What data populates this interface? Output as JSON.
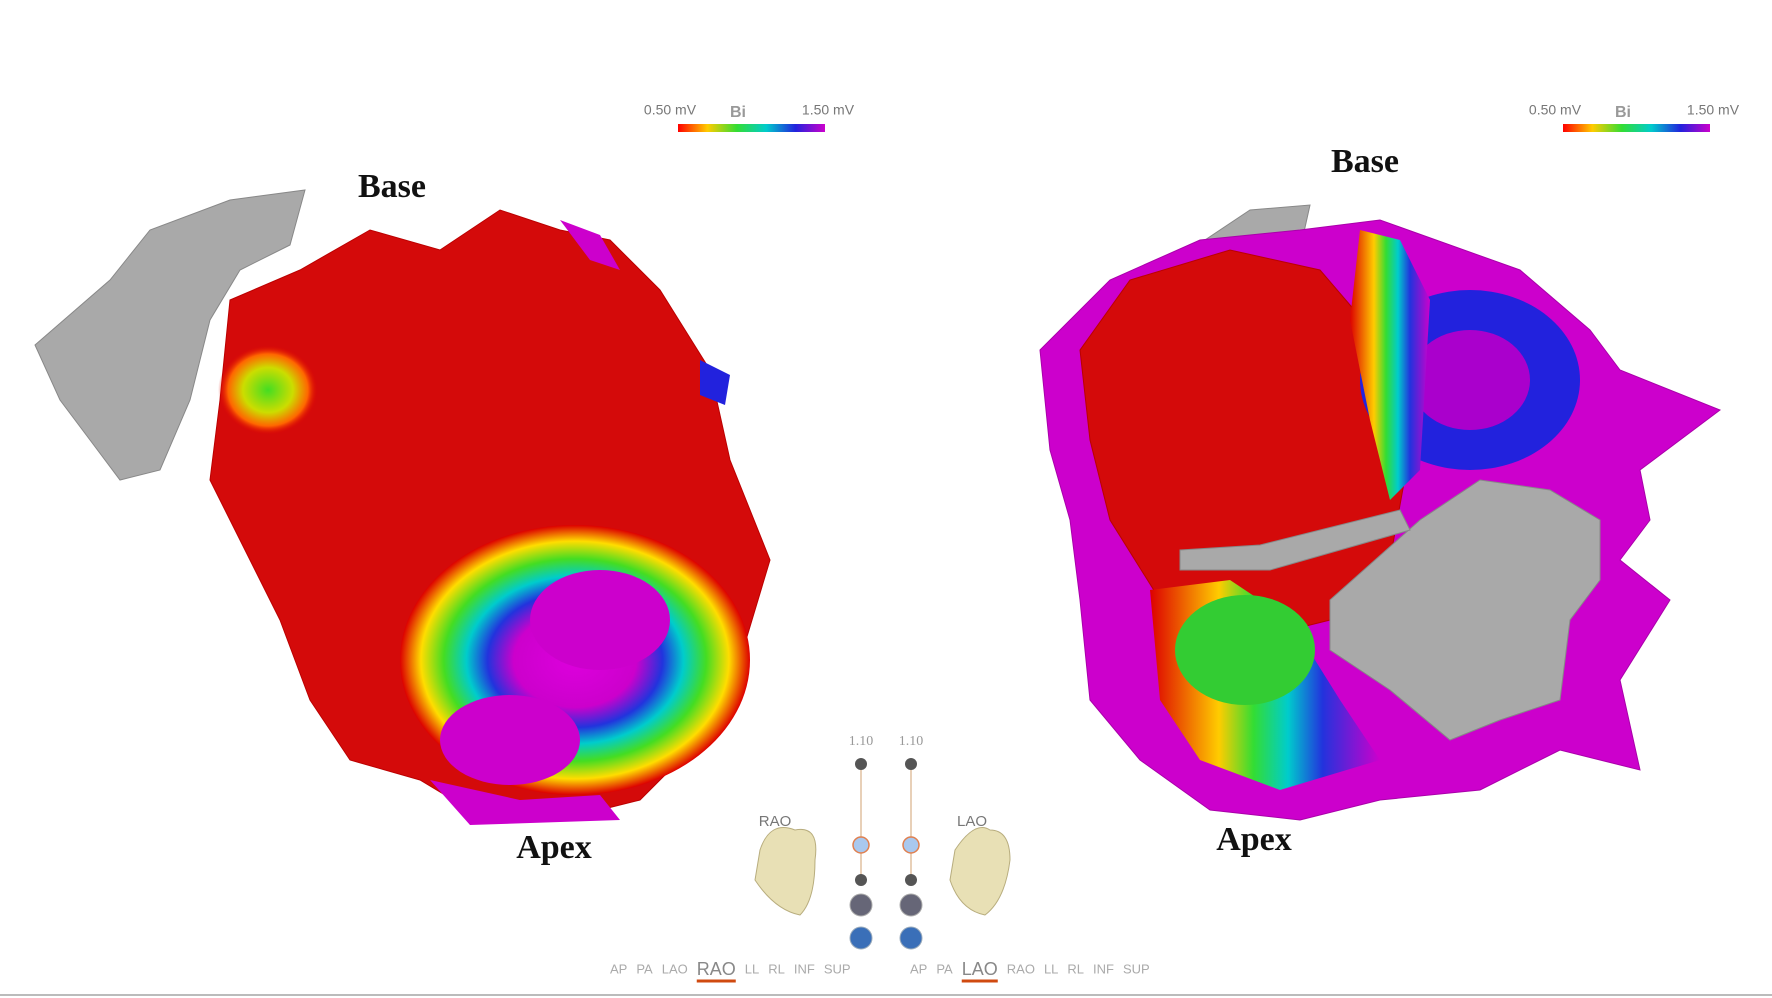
{
  "panels": [
    {
      "legend": {
        "min": "0.50 mV",
        "mode": "Bi",
        "max": "1.50 mV"
      },
      "labels": {
        "top": "Base",
        "bottom": "Apex"
      },
      "zoom": "1.10",
      "view": "RAO",
      "view_buttons": [
        "AP",
        "PA",
        "LAO",
        "RAO",
        "LL",
        "RL",
        "INF",
        "SUP"
      ]
    },
    {
      "legend": {
        "min": "0.50 mV",
        "mode": "Bi",
        "max": "1.50 mV"
      },
      "labels": {
        "top": "Base",
        "bottom": "Apex"
      },
      "zoom": "1.10",
      "view": "LAO",
      "view_buttons": [
        "AP",
        "PA",
        "LAO",
        "RAO",
        "LL",
        "RL",
        "INF",
        "SUP"
      ]
    }
  ]
}
